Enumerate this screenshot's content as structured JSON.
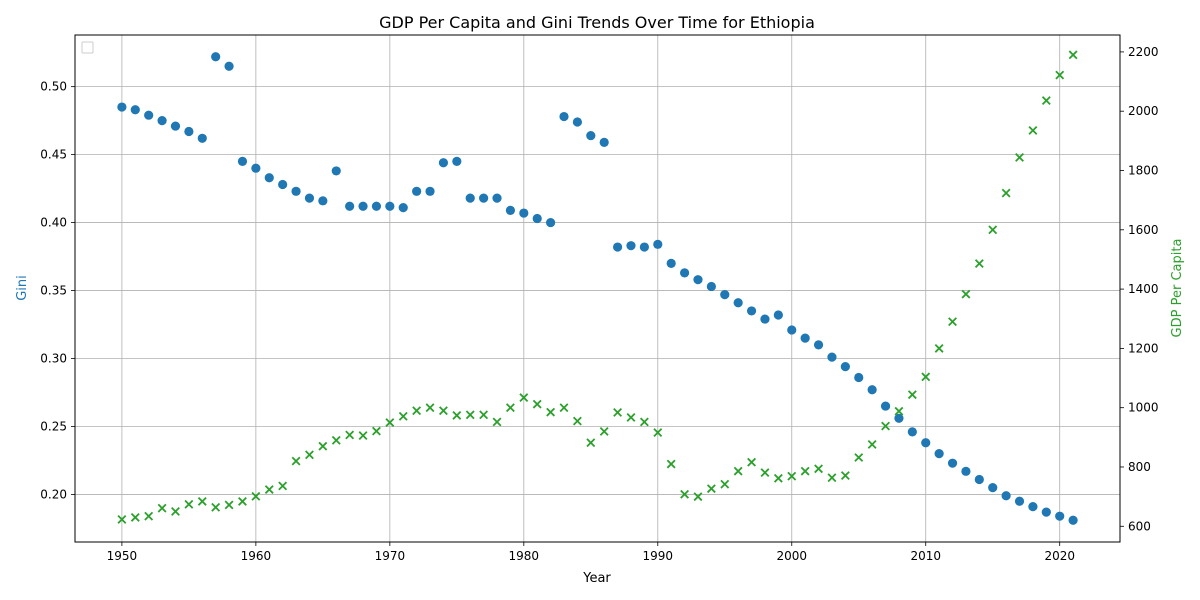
{
  "chart_data": {
    "type": "scatter",
    "title": "GDP Per Capita and Gini Trends Over Time for Ethiopia",
    "xlabel": "Year",
    "ylabel_left": "Gini",
    "ylabel_right": "GDP Per Capita",
    "xlim": [
      1946.5,
      2024.5
    ],
    "ylim_left": [
      0.165,
      0.538
    ],
    "ylim_right": [
      547,
      2257
    ],
    "x_ticks": [
      1950,
      1960,
      1970,
      1980,
      1990,
      2000,
      2010,
      2020
    ],
    "y_ticks_left": [
      0.2,
      0.25,
      0.3,
      0.35,
      0.4,
      0.45,
      0.5
    ],
    "y_ticks_right": [
      600,
      800,
      1000,
      1200,
      1400,
      1600,
      1800,
      2000,
      2200
    ],
    "grid": true,
    "legend": "upper-left (empty)",
    "colors": {
      "gini": "#1f77b4",
      "gdp": "#2ca02c",
      "axis_label_left": "#1f77b4",
      "axis_label_right": "#2ca02c"
    },
    "series": [
      {
        "axis": "left",
        "marker": "circle",
        "x": [
          1950,
          1951,
          1952,
          1953,
          1954,
          1955,
          1956,
          1957,
          1958,
          1959,
          1960,
          1961,
          1962,
          1963,
          1964,
          1965,
          1966,
          1967,
          1968,
          1969,
          1970,
          1971,
          1972,
          1973,
          1974,
          1975,
          1976,
          1977,
          1978,
          1979,
          1980,
          1981,
          1982,
          1983,
          1984,
          1985,
          1986,
          1987,
          1988,
          1989,
          1990,
          1991,
          1992,
          1993,
          1994,
          1995,
          1996,
          1997,
          1998,
          1999,
          2000,
          2001,
          2002,
          2003,
          2004,
          2005,
          2006,
          2007,
          2008,
          2009,
          2010,
          2011,
          2012,
          2013,
          2014,
          2015,
          2016,
          2017,
          2018,
          2019,
          2020,
          2021
        ],
        "values": [
          0.485,
          0.483,
          0.479,
          0.475,
          0.471,
          0.467,
          0.462,
          0.522,
          0.515,
          0.445,
          0.44,
          0.433,
          0.428,
          0.423,
          0.418,
          0.416,
          0.438,
          0.412,
          0.412,
          0.412,
          0.412,
          0.411,
          0.423,
          0.423,
          0.444,
          0.445,
          0.418,
          0.418,
          0.418,
          0.409,
          0.407,
          0.403,
          0.4,
          0.478,
          0.474,
          0.464,
          0.459,
          0.382,
          0.383,
          0.382,
          0.384,
          0.37,
          0.363,
          0.358,
          0.353,
          0.347,
          0.341,
          0.335,
          0.329,
          0.332,
          0.321,
          0.315,
          0.31,
          0.301,
          0.294,
          0.286,
          0.277,
          0.265,
          0.256,
          0.246,
          0.238,
          0.23,
          0.223,
          0.217,
          0.211,
          0.205,
          0.199,
          0.195,
          0.191,
          0.187,
          0.184,
          0.181
        ]
      },
      {
        "axis": "right",
        "marker": "x",
        "x": [
          1950,
          1951,
          1952,
          1953,
          1954,
          1955,
          1956,
          1957,
          1958,
          1959,
          1960,
          1961,
          1962,
          1963,
          1964,
          1965,
          1966,
          1967,
          1968,
          1969,
          1970,
          1971,
          1972,
          1973,
          1974,
          1975,
          1976,
          1977,
          1978,
          1979,
          1980,
          1981,
          1982,
          1983,
          1984,
          1985,
          1986,
          1987,
          1988,
          1989,
          1990,
          1991,
          1992,
          1993,
          1994,
          1995,
          1996,
          1997,
          1998,
          1999,
          2000,
          2001,
          2002,
          2003,
          2004,
          2005,
          2006,
          2007,
          2008,
          2009,
          2010,
          2011,
          2012,
          2013,
          2014,
          2015,
          2016,
          2017,
          2018,
          2019,
          2020,
          2021
        ],
        "values": [
          623,
          630,
          634,
          661,
          650,
          674,
          684,
          664,
          672,
          684,
          701,
          724,
          736,
          820,
          841,
          870,
          890,
          908,
          906,
          921,
          950,
          971,
          990,
          1000,
          990,
          974,
          976,
          976,
          952,
          1000,
          1034,
          1012,
          985,
          1000,
          955,
          882,
          920,
          984,
          967,
          952,
          916,
          810,
          708,
          700,
          727,
          742,
          786,
          816,
          781,
          762,
          769,
          786,
          794,
          764,
          771,
          832,
          876,
          938,
          988,
          1044,
          1104,
          1200,
          1290,
          1383,
          1486,
          1600,
          1724,
          1844,
          1935,
          2036,
          2122,
          2190
        ]
      }
    ]
  }
}
